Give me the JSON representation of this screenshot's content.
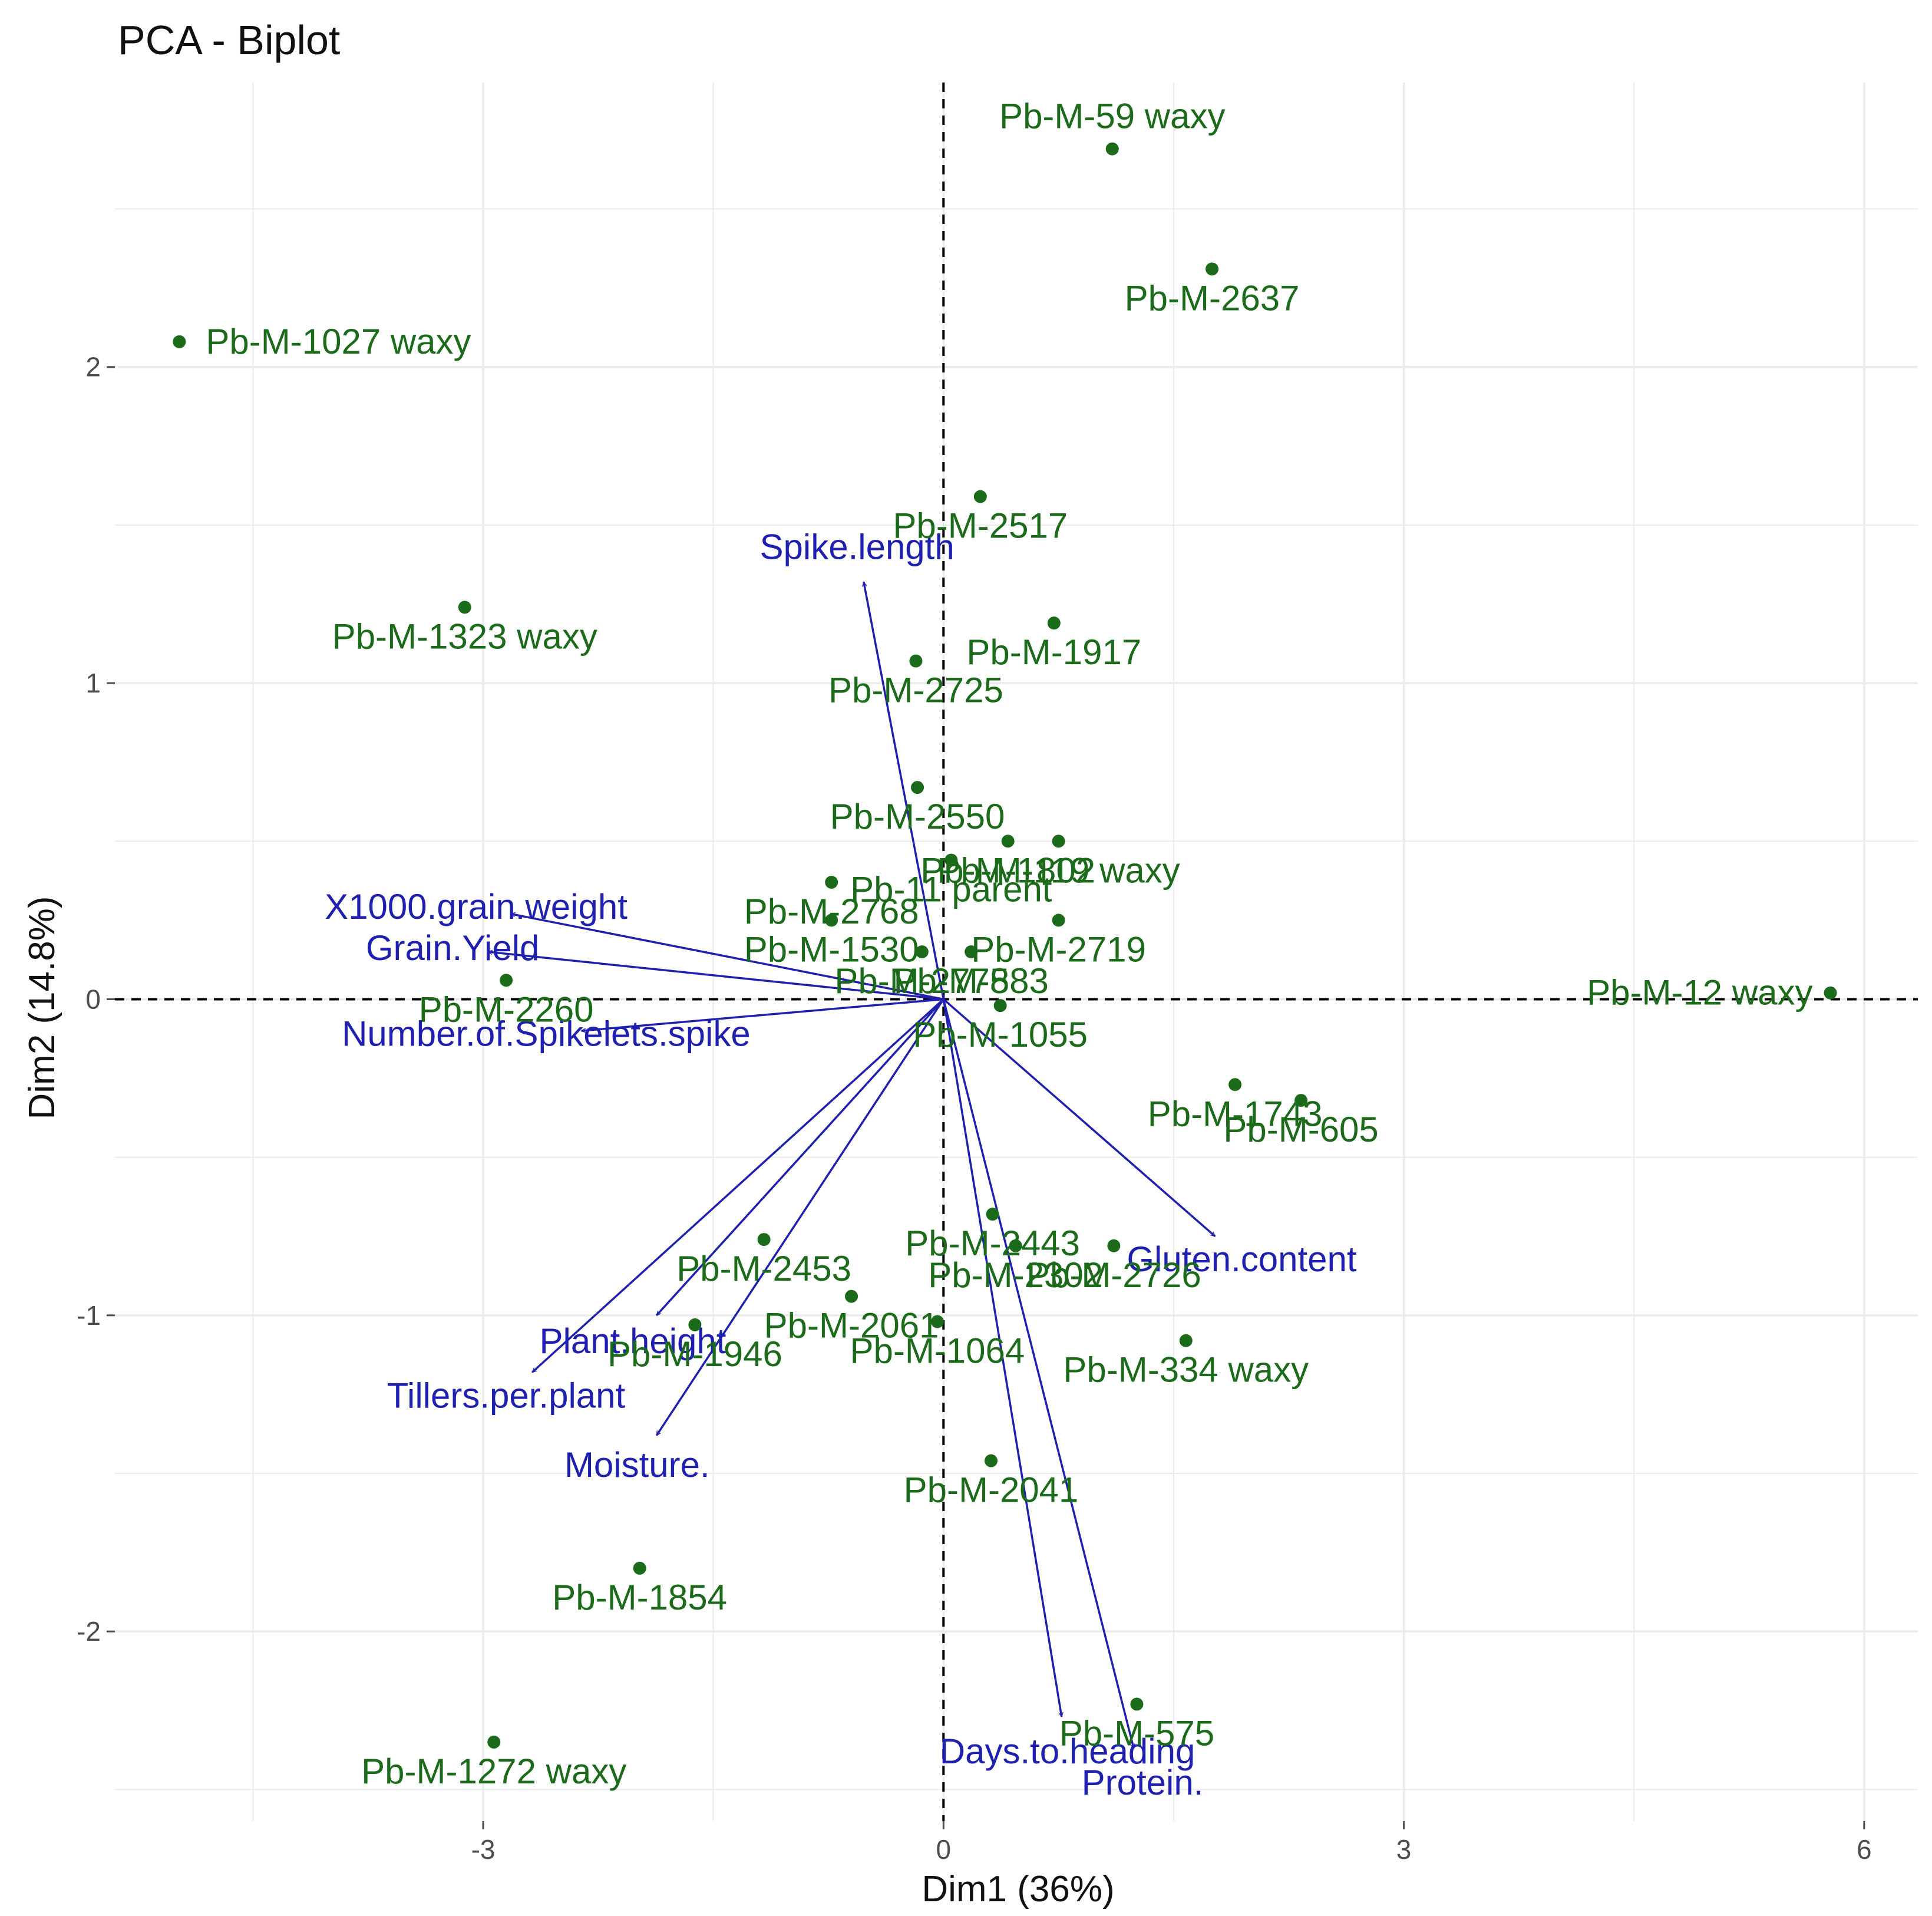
{
  "colors": {
    "observation": "#1b6b1b",
    "variable": "#1f1fb0",
    "grid": "#ebebeb",
    "reference_line": "#000000",
    "tick": "#4d4d4d"
  },
  "chart_data": {
    "type": "scatter",
    "subtype": "pca-biplot",
    "title": "PCA - Biplot",
    "xlabel": "Dim1 (36%)",
    "ylabel": "Dim2 (14.8%)",
    "xlim": [
      -5.4,
      6.35
    ],
    "ylim": [
      -2.6,
      2.9
    ],
    "x_ticks": [
      -3,
      0,
      3,
      6
    ],
    "x_tick_labels": [
      "-3",
      "0",
      "3",
      "6"
    ],
    "y_ticks": [
      -2,
      -1,
      0,
      1,
      2
    ],
    "y_tick_labels": [
      "-2",
      "-1",
      "0",
      "1",
      "2"
    ],
    "grid": true,
    "reference_lines": {
      "x": 0,
      "y": 0,
      "style": "dashed"
    },
    "observations": [
      {
        "label": "Pb-M-59 waxy",
        "x": 1.1,
        "y": 2.69
      },
      {
        "label": "Pb-M-2637",
        "x": 1.75,
        "y": 2.31
      },
      {
        "label": "Pb-M-1027 waxy",
        "x": -4.98,
        "y": 2.08
      },
      {
        "label": "Pb-M-2517",
        "x": 0.24,
        "y": 1.59
      },
      {
        "label": "Pb-M-1323 waxy",
        "x": -3.12,
        "y": 1.24
      },
      {
        "label": "Pb-M-1917",
        "x": 0.72,
        "y": 1.19
      },
      {
        "label": "Pb-M-2725",
        "x": -0.18,
        "y": 1.07
      },
      {
        "label": "Pb-M-2550",
        "x": -0.17,
        "y": 0.67
      },
      {
        "label": "Pb-M-1802",
        "x": 0.42,
        "y": 0.5
      },
      {
        "label": "Pb-M-119 waxy",
        "x": 0.75,
        "y": 0.5
      },
      {
        "label": "Pb-11 parent",
        "x": 0.05,
        "y": 0.44
      },
      {
        "label": "Pb-M-2768",
        "x": -0.73,
        "y": 0.37
      },
      {
        "label": "Pb-M-2719",
        "x": 0.75,
        "y": 0.25
      },
      {
        "label": "Pb-M-1530",
        "x": -0.73,
        "y": 0.25
      },
      {
        "label": "Pb-M-583",
        "x": 0.18,
        "y": 0.15
      },
      {
        "label": "Pb-M-2778",
        "x": -0.14,
        "y": 0.15
      },
      {
        "label": "Pb-M-2260",
        "x": -2.85,
        "y": 0.06
      },
      {
        "label": "Pb-M-12 waxy",
        "x": 5.78,
        "y": 0.02
      },
      {
        "label": "Pb-M-1055",
        "x": 0.37,
        "y": -0.02
      },
      {
        "label": "Pb-M-1743",
        "x": 1.9,
        "y": -0.27
      },
      {
        "label": "Pb-M-605",
        "x": 2.33,
        "y": -0.32
      },
      {
        "label": "Pb-M-2443",
        "x": 0.32,
        "y": -0.68
      },
      {
        "label": "Pb-M-2453",
        "x": -1.17,
        "y": -0.76
      },
      {
        "label": "Pb-M-2302",
        "x": 0.47,
        "y": -0.78
      },
      {
        "label": "Pb-M-2726",
        "x": 1.11,
        "y": -0.78
      },
      {
        "label": "Pb-M-2061",
        "x": -0.6,
        "y": -0.94
      },
      {
        "label": "Pb-M-1064",
        "x": -0.04,
        "y": -1.02
      },
      {
        "label": "Pb-M-1946",
        "x": -1.62,
        "y": -1.03
      },
      {
        "label": "Pb-M-334 waxy",
        "x": 1.58,
        "y": -1.08
      },
      {
        "label": "Pb-M-2041",
        "x": 0.31,
        "y": -1.46
      },
      {
        "label": "Pb-M-1854",
        "x": -1.98,
        "y": -1.8
      },
      {
        "label": "Pb-M-575",
        "x": 1.26,
        "y": -2.23
      },
      {
        "label": "Pb-M-1272 waxy",
        "x": -2.93,
        "y": -2.35
      }
    ],
    "variables": [
      {
        "label": "Spike.length",
        "x": -0.52,
        "y": 1.32
      },
      {
        "label": "X1000.grain.weight",
        "x": -2.82,
        "y": 0.27
      },
      {
        "label": "Grain.Yield",
        "x": -2.97,
        "y": 0.15
      },
      {
        "label": "Number.of.Spikelets.spike",
        "x": -2.36,
        "y": -0.1
      },
      {
        "label": "Gluten.content",
        "x": 1.77,
        "y": -0.75
      },
      {
        "label": "Plant.height",
        "x": -1.87,
        "y": -1.0
      },
      {
        "label": "Tillers.per.plant",
        "x": -2.68,
        "y": -1.18
      },
      {
        "label": "Moisture.",
        "x": -1.87,
        "y": -1.38
      },
      {
        "label": "Days.to.heading",
        "x": 0.77,
        "y": -2.27
      },
      {
        "label": "Protein.",
        "x": 1.24,
        "y": -2.37
      }
    ]
  }
}
